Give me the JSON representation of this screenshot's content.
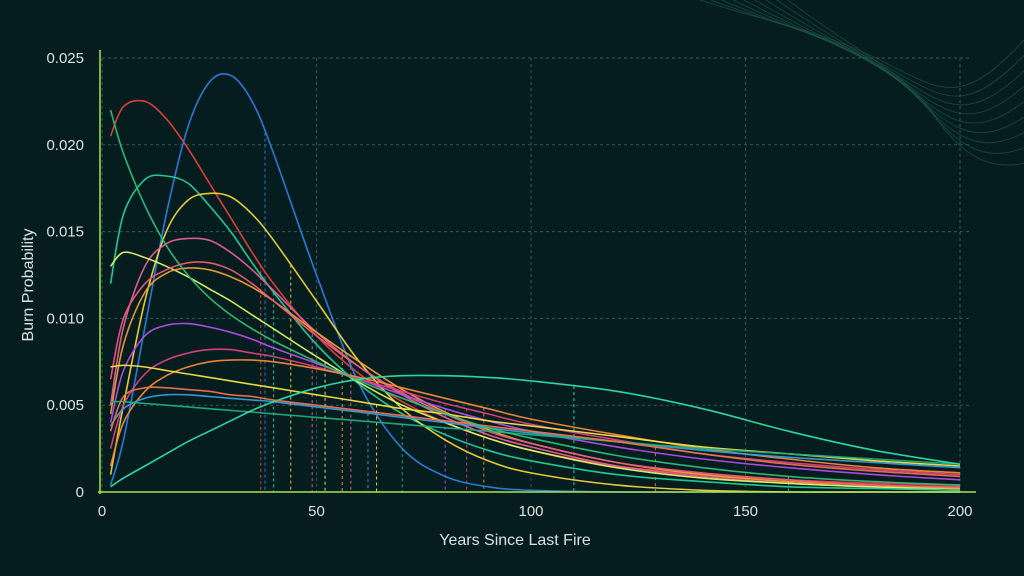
{
  "chart_data": {
    "type": "line",
    "title": "",
    "xlabel": "Years Since Last Fire",
    "ylabel": "Burn Probability",
    "xlim": [
      0,
      200
    ],
    "ylim": [
      0,
      0.025
    ],
    "x_ticks": [
      "0",
      "50",
      "100",
      "150",
      "200"
    ],
    "x_tick_values": [
      0,
      50,
      100,
      150,
      200
    ],
    "y_ticks": [
      "0",
      "0.005",
      "0.010",
      "0.015",
      "0.020",
      "0.025"
    ],
    "y_tick_values": [
      0,
      0.005,
      0.01,
      0.015,
      0.02,
      0.025
    ],
    "grid": true,
    "legend": "none",
    "x_samples": [
      2,
      5,
      10,
      15,
      20,
      25,
      30,
      35,
      40,
      50,
      60,
      70,
      80,
      90,
      100,
      120,
      140,
      160,
      180,
      200
    ],
    "series": [
      {
        "color": "#e8403a",
        "mean_marker": 37,
        "values": [
          0.0205,
          0.0222,
          0.0225,
          0.0215,
          0.0198,
          0.0178,
          0.0158,
          0.0138,
          0.012,
          0.009,
          0.0068,
          0.0052,
          0.004,
          0.0031,
          0.0024,
          0.0015,
          0.001,
          0.0007,
          0.0005,
          0.0004
        ]
      },
      {
        "color": "#2b7fe0",
        "mean_marker": 38,
        "values": [
          0.0004,
          0.003,
          0.0095,
          0.016,
          0.021,
          0.0236,
          0.024,
          0.0225,
          0.0195,
          0.0125,
          0.0062,
          0.0025,
          0.0009,
          0.0003,
          0.0001,
          0.0,
          0.0,
          0.0,
          0.0,
          0.0
        ]
      },
      {
        "color": "#22d39a",
        "mean_marker": 40,
        "values": [
          0.012,
          0.016,
          0.018,
          0.0182,
          0.0178,
          0.0165,
          0.015,
          0.0132,
          0.0115,
          0.0085,
          0.0062,
          0.0045,
          0.0033,
          0.0024,
          0.0018,
          0.001,
          0.0006,
          0.0003,
          0.0002,
          0.0001
        ]
      },
      {
        "color": "#f1d23a",
        "mean_marker": 44,
        "values": [
          0.001,
          0.005,
          0.011,
          0.015,
          0.0168,
          0.0172,
          0.017,
          0.016,
          0.0145,
          0.011,
          0.0075,
          0.0048,
          0.003,
          0.0018,
          0.0011,
          0.0004,
          0.0001,
          0.0,
          0.0,
          0.0
        ]
      },
      {
        "color": "#e8609a",
        "mean_marker": 49,
        "values": [
          0.005,
          0.0095,
          0.013,
          0.0143,
          0.0146,
          0.0145,
          0.0138,
          0.0128,
          0.0116,
          0.0092,
          0.0072,
          0.0056,
          0.0043,
          0.0033,
          0.0026,
          0.0015,
          0.0009,
          0.0005,
          0.0003,
          0.0002
        ]
      },
      {
        "color": "#d9f56c",
        "mean_marker": 52,
        "values": [
          0.013,
          0.0138,
          0.0135,
          0.013,
          0.0124,
          0.0117,
          0.011,
          0.0102,
          0.0094,
          0.0078,
          0.0063,
          0.005,
          0.004,
          0.0031,
          0.0024,
          0.0014,
          0.0008,
          0.0005,
          0.0003,
          0.0002
        ]
      },
      {
        "color": "#f0a030",
        "mean_marker": 56,
        "values": [
          0.0045,
          0.0085,
          0.0115,
          0.0126,
          0.0129,
          0.0128,
          0.0124,
          0.0118,
          0.011,
          0.0092,
          0.0075,
          0.0059,
          0.0046,
          0.0036,
          0.0028,
          0.0017,
          0.001,
          0.0006,
          0.0004,
          0.0002
        ]
      },
      {
        "color": "#ef5a7a",
        "mean_marker": 58,
        "values": [
          0.0065,
          0.01,
          0.012,
          0.0128,
          0.0132,
          0.0132,
          0.0128,
          0.012,
          0.011,
          0.009,
          0.0072,
          0.0057,
          0.0045,
          0.0035,
          0.0028,
          0.0017,
          0.0011,
          0.0007,
          0.0004,
          0.0003
        ]
      },
      {
        "color": "#b44ee8",
        "mean_marker": 80,
        "values": [
          0.004,
          0.007,
          0.009,
          0.0096,
          0.0097,
          0.0095,
          0.0092,
          0.0088,
          0.0083,
          0.0074,
          0.0065,
          0.0056,
          0.0048,
          0.0041,
          0.0035,
          0.0026,
          0.0019,
          0.0014,
          0.001,
          0.0007
        ]
      },
      {
        "color": "#e0407f",
        "mean_marker": 85,
        "values": [
          0.0025,
          0.005,
          0.0068,
          0.0076,
          0.008,
          0.0082,
          0.0082,
          0.008,
          0.0078,
          0.0072,
          0.0065,
          0.0058,
          0.0051,
          0.0045,
          0.0039,
          0.003,
          0.0022,
          0.0017,
          0.0013,
          0.001
        ]
      },
      {
        "color": "#f48a3c",
        "mean_marker": 89,
        "values": [
          0.0015,
          0.004,
          0.0058,
          0.0067,
          0.0072,
          0.0075,
          0.0076,
          0.0076,
          0.0075,
          0.0071,
          0.0066,
          0.006,
          0.0054,
          0.0048,
          0.0042,
          0.0033,
          0.0025,
          0.0019,
          0.0014,
          0.0011
        ]
      },
      {
        "color": "#f5e046",
        "mean_marker": 64,
        "values": [
          0.0072,
          0.0073,
          0.0072,
          0.007,
          0.0068,
          0.0066,
          0.0064,
          0.0062,
          0.006,
          0.0056,
          0.0052,
          0.0048,
          0.0045,
          0.0041,
          0.0038,
          0.0032,
          0.0026,
          0.0022,
          0.0018,
          0.0015
        ]
      },
      {
        "color": "#3a9ed8",
        "mean_marker": 62,
        "values": [
          0.0038,
          0.0048,
          0.0054,
          0.0056,
          0.0056,
          0.0055,
          0.0054,
          0.0053,
          0.0052,
          0.0049,
          0.0046,
          0.0043,
          0.004,
          0.0037,
          0.0034,
          0.0029,
          0.0024,
          0.002,
          0.0017,
          0.0014
        ]
      },
      {
        "color": "#1fae7c",
        "mean_marker": 70,
        "values": [
          0.0052,
          0.0052,
          0.0051,
          0.005,
          0.0049,
          0.0048,
          0.0047,
          0.0046,
          0.0045,
          0.0043,
          0.0041,
          0.0039,
          0.0037,
          0.0035,
          0.0033,
          0.0029,
          0.0025,
          0.0022,
          0.0019,
          0.0016
        ]
      },
      {
        "color": "#2ee0a8",
        "mean_marker": 110,
        "values": [
          0.0003,
          0.0008,
          0.0015,
          0.0022,
          0.0029,
          0.0035,
          0.0041,
          0.0047,
          0.0052,
          0.006,
          0.0065,
          0.0067,
          0.0067,
          0.0066,
          0.0064,
          0.0058,
          0.0048,
          0.0035,
          0.0024,
          0.0016
        ]
      },
      {
        "color": "#ee7350",
        "mean_marker": 129,
        "values": [
          0.0035,
          0.0055,
          0.006,
          0.006,
          0.0059,
          0.0058,
          0.0056,
          0.0055,
          0.0053,
          0.005,
          0.0047,
          0.0044,
          0.0041,
          0.0038,
          0.0035,
          0.0029,
          0.0022,
          0.0016,
          0.0012,
          0.0009
        ]
      },
      {
        "color": "#2fbf7a",
        "mean_marker": 160,
        "values": [
          0.022,
          0.0195,
          0.0165,
          0.0142,
          0.0125,
          0.0112,
          0.0102,
          0.0094,
          0.0087,
          0.0075,
          0.0064,
          0.0054,
          0.0045,
          0.0037,
          0.0031,
          0.0021,
          0.0014,
          0.0009,
          0.0006,
          0.0004
        ]
      }
    ]
  }
}
